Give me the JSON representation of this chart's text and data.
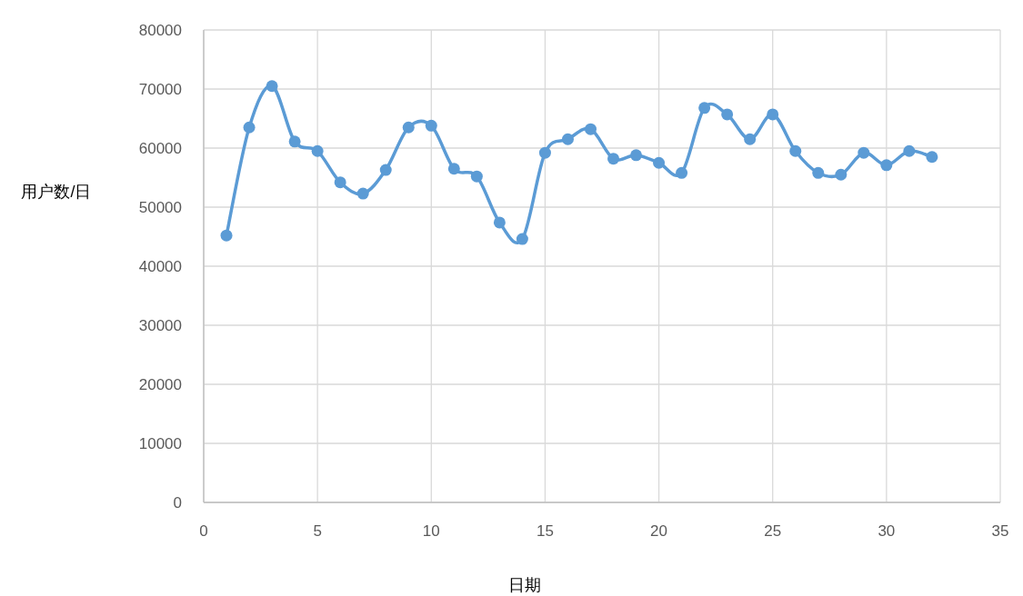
{
  "chart_data": {
    "type": "line",
    "xlabel": "日期",
    "ylabel": "用户数/日",
    "x": [
      1,
      2,
      3,
      4,
      5,
      6,
      7,
      8,
      9,
      10,
      11,
      12,
      13,
      14,
      15,
      16,
      17,
      18,
      19,
      20,
      21,
      22,
      23,
      24,
      25,
      26,
      27,
      28,
      29,
      30,
      31,
      32
    ],
    "series": [
      {
        "color": "#5b9bd5",
        "values": [
          45200,
          63500,
          70500,
          61100,
          59500,
          54200,
          52300,
          56300,
          63500,
          63800,
          56500,
          55200,
          47400,
          44600,
          59200,
          61500,
          63200,
          58200,
          58800,
          57500,
          55800,
          66800,
          65700,
          61500,
          65700,
          59500,
          55800,
          55500,
          59200,
          57100,
          59500,
          58500
        ]
      }
    ],
    "xlim": [
      0,
      35
    ],
    "xticks": [
      0,
      5,
      10,
      15,
      20,
      25,
      30,
      35
    ],
    "ylim": [
      0,
      80000
    ],
    "yticks": [
      0,
      10000,
      20000,
      30000,
      40000,
      50000,
      60000,
      70000,
      80000
    ],
    "grid": true,
    "marker": "circle",
    "line_style": "solid"
  }
}
